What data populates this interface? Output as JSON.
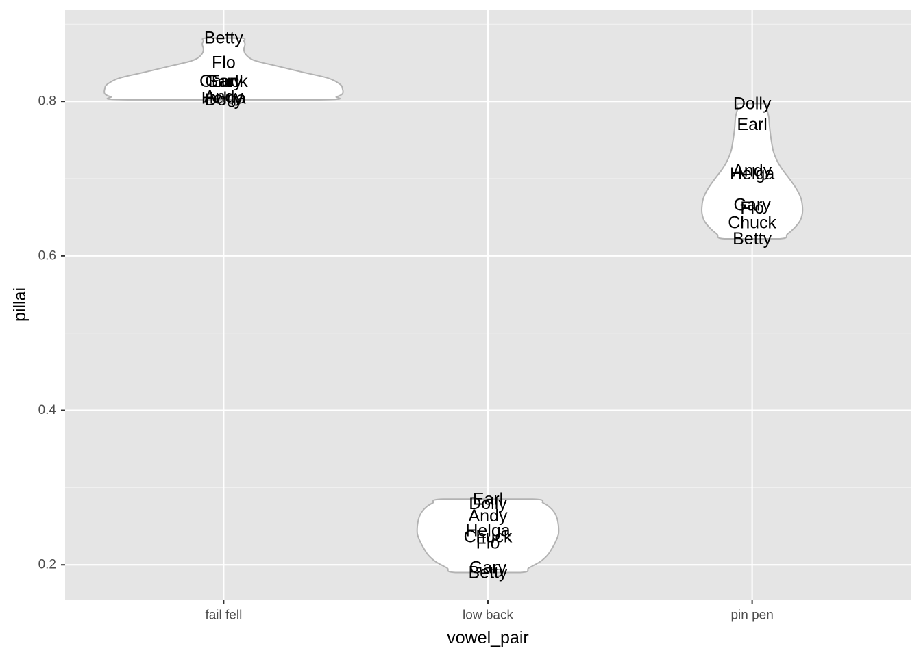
{
  "chart_data": {
    "type": "violin",
    "xlabel": "vowel_pair",
    "ylabel": "pillai",
    "categories": [
      "fail fell",
      "low back",
      "pin pen"
    ],
    "y_ticks": [
      0.2,
      0.4,
      0.6,
      0.8
    ],
    "y_tick_labels": [
      "0.2",
      "0.4",
      "0.6",
      "0.8"
    ],
    "ylim": [
      0.155,
      0.918
    ],
    "grid": true,
    "legend": "none",
    "groups": [
      {
        "category": "fail fell",
        "points": [
          {
            "label": "Betty",
            "value": 0.882
          },
          {
            "label": "Flo",
            "value": 0.85
          },
          {
            "label": "Chuck",
            "value": 0.826
          },
          {
            "label": "Gary",
            "value": 0.826
          },
          {
            "label": "Earl",
            "value": 0.826
          },
          {
            "label": "Andy",
            "value": 0.806
          },
          {
            "label": "Helga",
            "value": 0.804
          },
          {
            "label": "Dolly",
            "value": 0.802
          }
        ],
        "violin_max_half_width": 0.45,
        "violin_profile": [
          [
            0.802,
            0.81
          ],
          [
            0.806,
            0.95
          ],
          [
            0.81,
            1.0
          ],
          [
            0.816,
            1.0
          ],
          [
            0.822,
            0.98
          ],
          [
            0.83,
            0.88
          ],
          [
            0.838,
            0.66
          ],
          [
            0.846,
            0.44
          ],
          [
            0.852,
            0.28
          ],
          [
            0.856,
            0.22
          ],
          [
            0.862,
            0.18
          ],
          [
            0.868,
            0.17
          ],
          [
            0.874,
            0.18
          ],
          [
            0.878,
            0.17
          ],
          [
            0.882,
            0.15
          ]
        ]
      },
      {
        "category": "low back",
        "points": [
          {
            "label": "Earl",
            "value": 0.285
          },
          {
            "label": "Dolly",
            "value": 0.279
          },
          {
            "label": "Andy",
            "value": 0.263
          },
          {
            "label": "Helga",
            "value": 0.244
          },
          {
            "label": "Chuck",
            "value": 0.236
          },
          {
            "label": "Flo",
            "value": 0.228
          },
          {
            "label": "Gary",
            "value": 0.196
          },
          {
            "label": "Betty",
            "value": 0.19
          }
        ],
        "violin_max_half_width": 0.267,
        "violin_profile": [
          [
            0.19,
            0.46
          ],
          [
            0.196,
            0.58
          ],
          [
            0.204,
            0.74
          ],
          [
            0.212,
            0.84
          ],
          [
            0.22,
            0.9
          ],
          [
            0.23,
            0.96
          ],
          [
            0.24,
            1.0
          ],
          [
            0.25,
            1.0
          ],
          [
            0.26,
            0.98
          ],
          [
            0.268,
            0.94
          ],
          [
            0.275,
            0.87
          ],
          [
            0.28,
            0.78
          ],
          [
            0.285,
            0.63
          ]
        ]
      },
      {
        "category": "pin pen",
        "points": [
          {
            "label": "Dolly",
            "value": 0.797
          },
          {
            "label": "Earl",
            "value": 0.77
          },
          {
            "label": "Andy",
            "value": 0.71
          },
          {
            "label": "Helga",
            "value": 0.706
          },
          {
            "label": "Gary",
            "value": 0.666
          },
          {
            "label": "Flo",
            "value": 0.662
          },
          {
            "label": "Chuck",
            "value": 0.643
          },
          {
            "label": "Betty",
            "value": 0.622
          }
        ],
        "violin_max_half_width": 0.19,
        "violin_profile": [
          [
            0.622,
            0.55
          ],
          [
            0.628,
            0.7
          ],
          [
            0.636,
            0.84
          ],
          [
            0.645,
            0.95
          ],
          [
            0.655,
            1.0
          ],
          [
            0.665,
            1.0
          ],
          [
            0.675,
            0.97
          ],
          [
            0.687,
            0.88
          ],
          [
            0.7,
            0.74
          ],
          [
            0.712,
            0.6
          ],
          [
            0.724,
            0.49
          ],
          [
            0.736,
            0.42
          ],
          [
            0.75,
            0.38
          ],
          [
            0.765,
            0.35
          ],
          [
            0.78,
            0.33
          ],
          [
            0.79,
            0.29
          ],
          [
            0.797,
            0.26
          ]
        ]
      }
    ]
  }
}
